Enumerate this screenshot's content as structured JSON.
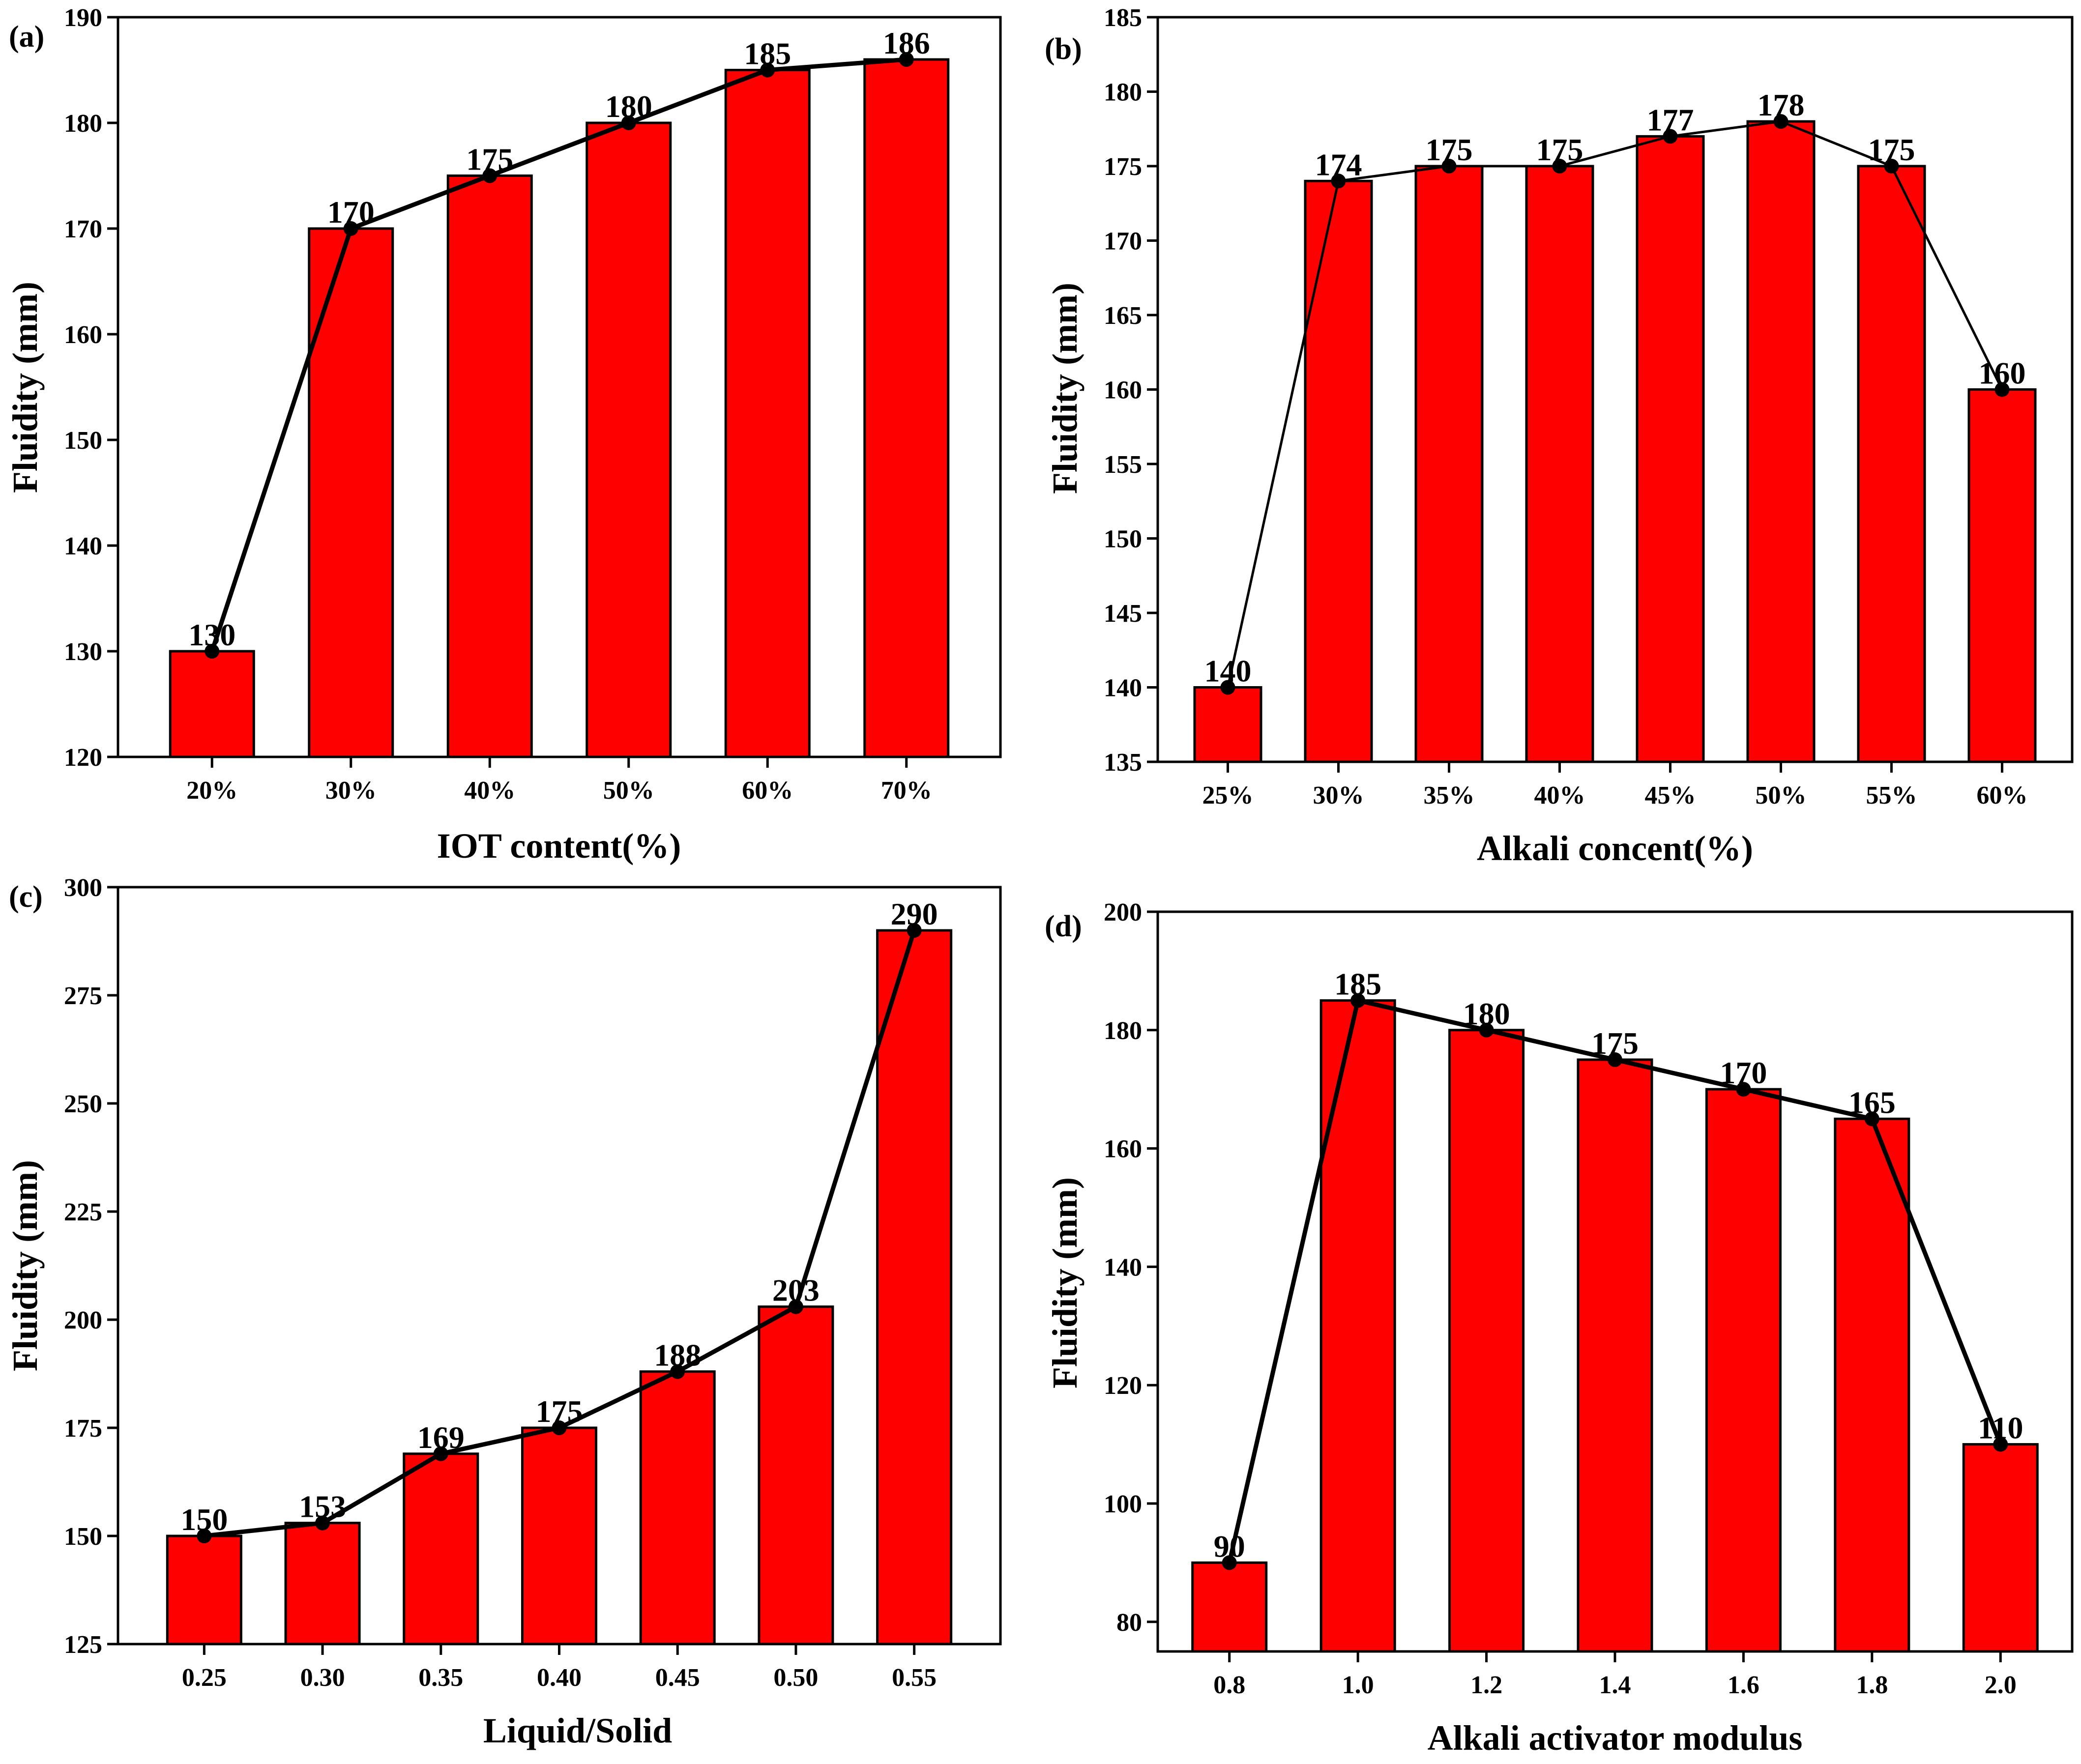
{
  "colors": {
    "bar_fill": "#ff0000",
    "outline": "#000000",
    "line": "#000000",
    "background": "#ffffff"
  },
  "chart_data": [
    {
      "panel_label": "(a)",
      "type": "bar",
      "overlay": "line-with-markers",
      "categories": [
        "20%",
        "30%",
        "40%",
        "50%",
        "60%",
        "70%"
      ],
      "values": [
        130,
        170,
        175,
        180,
        185,
        186
      ],
      "data_labels": [
        "130",
        "170",
        "175",
        "180",
        "185",
        "186"
      ],
      "xlabel": "IOT content(%)",
      "ylabel": "Fluidity (mm)",
      "ylim": [
        120,
        190
      ],
      "yticks": [
        120,
        130,
        140,
        150,
        160,
        170,
        180,
        190
      ],
      "ytick_labels": [
        "120",
        "130",
        "140",
        "150",
        "160",
        "170",
        "180",
        "190"
      ],
      "grid": false,
      "legend": "none"
    },
    {
      "panel_label": "(b)",
      "type": "bar",
      "overlay": "line-with-markers",
      "categories": [
        "25%",
        "30%",
        "35%",
        "40%",
        "45%",
        "50%",
        "55%",
        "60%"
      ],
      "values": [
        140,
        174,
        175,
        175,
        177,
        178,
        175,
        160
      ],
      "data_labels": [
        "140",
        "174",
        "175",
        "175",
        "177",
        "178",
        "175",
        "160"
      ],
      "xlabel": "Alkali concent(%)",
      "ylabel": "Fluidity (mm)",
      "ylim": [
        135,
        185
      ],
      "yticks": [
        135,
        140,
        145,
        150,
        155,
        160,
        165,
        170,
        175,
        180,
        185
      ],
      "ytick_labels": [
        "135",
        "140",
        "145",
        "150",
        "155",
        "160",
        "165",
        "170",
        "175",
        "180",
        "185"
      ],
      "grid": false,
      "legend": "none"
    },
    {
      "panel_label": "(c)",
      "type": "bar",
      "overlay": "line-with-markers",
      "categories": [
        "0.25",
        "0.30",
        "0.35",
        "0.40",
        "0.45",
        "0.50",
        "0.55"
      ],
      "values": [
        150,
        153,
        169,
        175,
        188,
        203,
        290
      ],
      "data_labels": [
        "150",
        "153",
        "169",
        "175",
        "188",
        "203",
        "290"
      ],
      "xlabel": "Liquid/Solid",
      "ylabel": "Fluidity (mm)",
      "ylim": [
        125,
        300
      ],
      "yticks": [
        125,
        150,
        175,
        200,
        225,
        250,
        275,
        300
      ],
      "ytick_labels": [
        "125",
        "150",
        "175",
        "200",
        "225",
        "250",
        "275",
        "300"
      ],
      "grid": false,
      "legend": "none"
    },
    {
      "panel_label": "(d)",
      "type": "bar",
      "overlay": "line-with-markers",
      "categories": [
        "0.8",
        "1.0",
        "1.2",
        "1.4",
        "1.6",
        "1.8",
        "2.0"
      ],
      "values": [
        90,
        185,
        180,
        175,
        170,
        165,
        110
      ],
      "data_labels": [
        "90",
        "185",
        "180",
        "175",
        "170",
        "165",
        "110"
      ],
      "xlabel": "Alkali activator modulus",
      "ylabel": "Fluidity (mm)",
      "ylim": [
        75,
        200
      ],
      "yticks": [
        80,
        100,
        120,
        140,
        160,
        180,
        200
      ],
      "ytick_labels": [
        "80",
        "100",
        "120",
        "140",
        "160",
        "180",
        "200"
      ],
      "grid": false,
      "legend": "none"
    }
  ]
}
